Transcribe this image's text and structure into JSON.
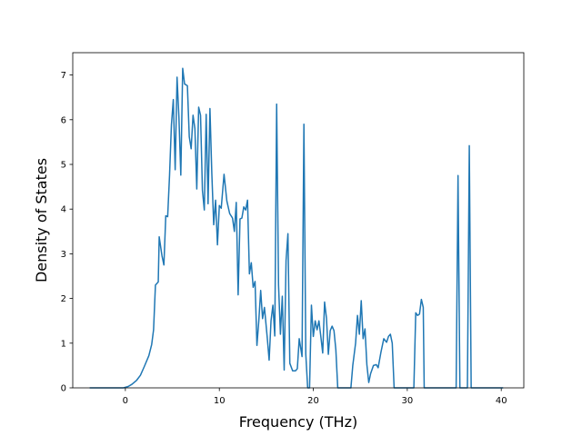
{
  "chart_data": {
    "type": "line",
    "title": "",
    "xlabel": "Frequency (THz)",
    "ylabel": "Density of States",
    "xlim": [
      -5.6,
      42.4
    ],
    "ylim": [
      0,
      7.5
    ],
    "xticks": [
      0,
      10,
      20,
      30,
      40
    ],
    "yticks": [
      0,
      1,
      2,
      3,
      4,
      5,
      6,
      7
    ],
    "grid": false,
    "line_color": "#1f77b4",
    "series": [
      {
        "points": [
          [
            -3.8,
            0
          ],
          [
            -0.2,
            0
          ],
          [
            0.3,
            0.03
          ],
          [
            0.7,
            0.08
          ],
          [
            1.2,
            0.17
          ],
          [
            1.6,
            0.28
          ],
          [
            2.0,
            0.47
          ],
          [
            2.5,
            0.72
          ],
          [
            2.8,
            0.97
          ],
          [
            3.0,
            1.3
          ],
          [
            3.2,
            2.3
          ],
          [
            3.5,
            2.37
          ],
          [
            3.6,
            3.38
          ],
          [
            3.9,
            2.95
          ],
          [
            4.1,
            2.75
          ],
          [
            4.3,
            3.85
          ],
          [
            4.5,
            3.83
          ],
          [
            4.7,
            4.75
          ],
          [
            4.9,
            5.88
          ],
          [
            5.1,
            6.45
          ],
          [
            5.3,
            4.88
          ],
          [
            5.5,
            6.95
          ],
          [
            5.7,
            6.05
          ],
          [
            5.9,
            4.76
          ],
          [
            6.1,
            7.15
          ],
          [
            6.3,
            6.8
          ],
          [
            6.6,
            6.76
          ],
          [
            6.8,
            5.62
          ],
          [
            7.0,
            5.35
          ],
          [
            7.2,
            6.1
          ],
          [
            7.4,
            5.8
          ],
          [
            7.6,
            4.45
          ],
          [
            7.8,
            6.28
          ],
          [
            8.0,
            6.1
          ],
          [
            8.2,
            4.42
          ],
          [
            8.4,
            3.98
          ],
          [
            8.6,
            6.12
          ],
          [
            8.8,
            4.12
          ],
          [
            9.0,
            6.25
          ],
          [
            9.2,
            4.8
          ],
          [
            9.4,
            3.65
          ],
          [
            9.6,
            4.2
          ],
          [
            9.8,
            3.2
          ],
          [
            10.0,
            4.08
          ],
          [
            10.2,
            4.02
          ],
          [
            10.5,
            4.78
          ],
          [
            10.8,
            4.18
          ],
          [
            11.1,
            3.9
          ],
          [
            11.4,
            3.8
          ],
          [
            11.6,
            3.5
          ],
          [
            11.8,
            4.15
          ],
          [
            12.0,
            2.08
          ],
          [
            12.2,
            3.78
          ],
          [
            12.4,
            3.8
          ],
          [
            12.6,
            4.05
          ],
          [
            12.8,
            3.98
          ],
          [
            13.0,
            4.2
          ],
          [
            13.2,
            2.55
          ],
          [
            13.4,
            2.8
          ],
          [
            13.6,
            2.25
          ],
          [
            13.8,
            2.38
          ],
          [
            14.0,
            0.95
          ],
          [
            14.2,
            1.5
          ],
          [
            14.4,
            2.18
          ],
          [
            14.6,
            1.55
          ],
          [
            14.8,
            1.8
          ],
          [
            15.1,
            1.12
          ],
          [
            15.3,
            0.62
          ],
          [
            15.5,
            1.5
          ],
          [
            15.7,
            1.85
          ],
          [
            15.9,
            1.16
          ],
          [
            16.1,
            6.35
          ],
          [
            16.3,
            2.3
          ],
          [
            16.5,
            1.2
          ],
          [
            16.7,
            2.05
          ],
          [
            16.9,
            0.4
          ],
          [
            17.1,
            2.85
          ],
          [
            17.3,
            3.45
          ],
          [
            17.5,
            0.55
          ],
          [
            17.8,
            0.38
          ],
          [
            18.1,
            0.38
          ],
          [
            18.3,
            0.43
          ],
          [
            18.5,
            1.1
          ],
          [
            18.8,
            0.7
          ],
          [
            19.0,
            5.9
          ],
          [
            19.2,
            0.75
          ],
          [
            19.4,
            0
          ],
          [
            19.6,
            0
          ],
          [
            19.8,
            1.85
          ],
          [
            20.0,
            1.15
          ],
          [
            20.2,
            1.5
          ],
          [
            20.4,
            1.3
          ],
          [
            20.6,
            1.5
          ],
          [
            20.8,
            1.15
          ],
          [
            21.0,
            0.78
          ],
          [
            21.2,
            1.92
          ],
          [
            21.4,
            1.56
          ],
          [
            21.6,
            0.75
          ],
          [
            21.8,
            1.28
          ],
          [
            22.0,
            1.38
          ],
          [
            22.2,
            1.28
          ],
          [
            22.4,
            0.85
          ],
          [
            22.6,
            0
          ],
          [
            24.0,
            0
          ],
          [
            24.2,
            0.5
          ],
          [
            24.5,
            1.0
          ],
          [
            24.7,
            1.62
          ],
          [
            24.9,
            1.2
          ],
          [
            25.1,
            1.95
          ],
          [
            25.3,
            1.1
          ],
          [
            25.5,
            1.32
          ],
          [
            25.7,
            0.52
          ],
          [
            25.9,
            0.12
          ],
          [
            26.1,
            0.32
          ],
          [
            26.4,
            0.5
          ],
          [
            26.7,
            0.52
          ],
          [
            26.9,
            0.45
          ],
          [
            27.2,
            0.8
          ],
          [
            27.5,
            1.1
          ],
          [
            27.8,
            1.02
          ],
          [
            28.0,
            1.15
          ],
          [
            28.2,
            1.2
          ],
          [
            28.4,
            1.0
          ],
          [
            28.6,
            0
          ],
          [
            30.7,
            0
          ],
          [
            30.9,
            1.68
          ],
          [
            31.1,
            1.62
          ],
          [
            31.3,
            1.65
          ],
          [
            31.5,
            1.98
          ],
          [
            31.7,
            1.8
          ],
          [
            31.8,
            0
          ],
          [
            35.2,
            0
          ],
          [
            35.4,
            4.75
          ],
          [
            35.6,
            0
          ],
          [
            36.4,
            0
          ],
          [
            36.6,
            5.42
          ],
          [
            36.8,
            0
          ],
          [
            40.2,
            0
          ]
        ]
      }
    ]
  }
}
